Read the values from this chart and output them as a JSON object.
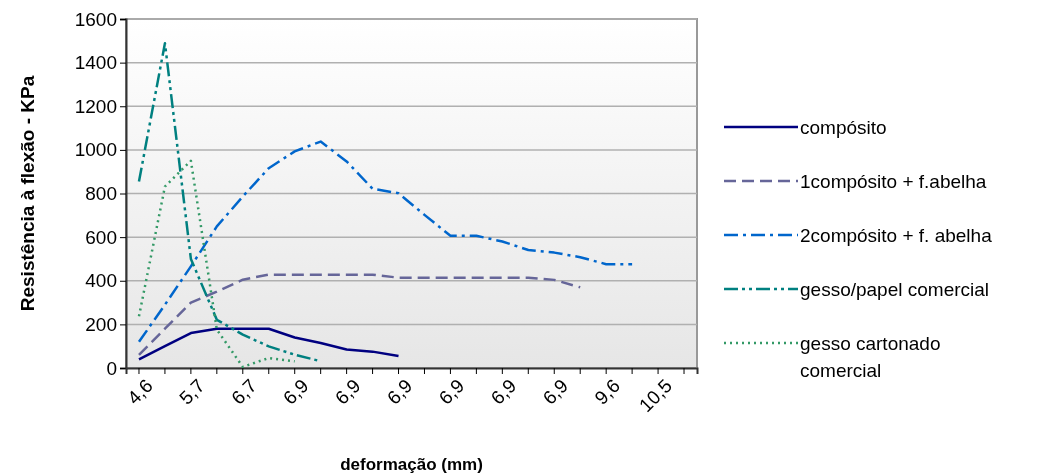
{
  "chart_data": {
    "type": "line",
    "xlabel": "deformação (mm)",
    "ylabel": "Resistência à flexão - KPa",
    "categories": [
      "4,6",
      null,
      "5,7",
      null,
      "6,7",
      null,
      "6,9",
      null,
      "6,9",
      null,
      "6,9",
      null,
      "6,9",
      null,
      "6,9",
      null,
      "6,9",
      null,
      "9,6",
      null,
      "10,5",
      null
    ],
    "ylim": [
      0,
      1600
    ],
    "yticks": [
      0,
      200,
      400,
      600,
      800,
      1000,
      1200,
      1400,
      1600
    ],
    "grid": "y",
    "legend": "right",
    "series": [
      {
        "name": "compósito",
        "color": "#000080",
        "line_style": "solid",
        "values": [
          40,
          100,
          160,
          180,
          180,
          180,
          140,
          115,
          85,
          75,
          55,
          null,
          null,
          null,
          null,
          null,
          null,
          null,
          null,
          null,
          null,
          null
        ]
      },
      {
        "name": "1compósito + f.abelha",
        "color": "#666699",
        "line_style": "dashed",
        "values": [
          60,
          180,
          300,
          350,
          405,
          428,
          428,
          428,
          428,
          428,
          414,
          414,
          414,
          414,
          414,
          414,
          404,
          370,
          null,
          null,
          null,
          null
        ]
      },
      {
        "name": "2compósito + f. abelha",
        "color": "#0066cc",
        "line_style": "dashdot",
        "values": [
          120,
          290,
          466,
          649,
          786,
          916,
          993,
          1038,
          947,
          822,
          801,
          702,
          606,
          606,
          580,
          541,
          529,
          508,
          476,
          476,
          null,
          null
        ]
      },
      {
        "name": "gesso/papel comercial",
        "color": "#008080",
        "line_style": "dashdotdot",
        "values": [
          855,
          1489,
          500,
          221,
          153,
          99,
          61,
          31,
          null,
          null,
          null,
          null,
          null,
          null,
          null,
          null,
          null,
          null,
          null,
          null,
          null,
          null
        ]
      },
      {
        "name": "gesso cartonado comercial",
        "color": "#339966",
        "line_style": "dotted",
        "values": [
          237,
          832,
          950,
          176,
          5,
          46,
          31,
          null,
          null,
          null,
          null,
          null,
          null,
          null,
          null,
          null,
          null,
          null,
          null,
          null,
          null,
          null
        ]
      }
    ]
  }
}
